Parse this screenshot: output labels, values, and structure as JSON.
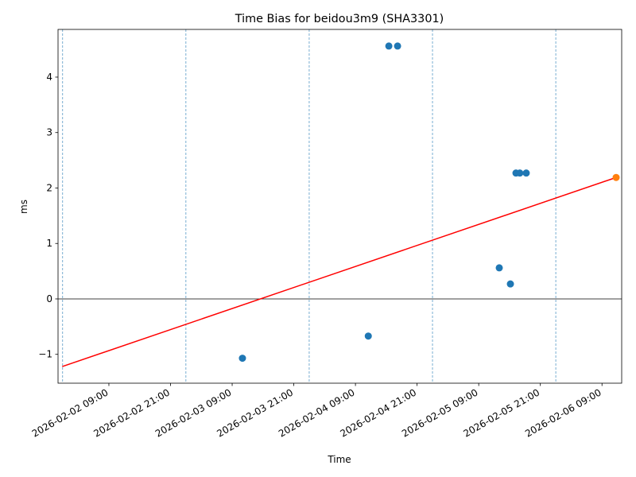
{
  "chart_data": {
    "type": "scatter",
    "title": "Time Bias for beidou3m9 (SHA3301)",
    "xlabel": "Time",
    "ylabel": "ms",
    "xlim": [
      "2026-02-01 23:06",
      "2026-02-06 12:50"
    ],
    "ylim": [
      -1.52,
      4.86
    ],
    "xticks": [
      "2026-02-02 09:00",
      "2026-02-02 21:00",
      "2026-02-03 09:00",
      "2026-02-03 21:00",
      "2026-02-04 09:00",
      "2026-02-04 21:00",
      "2026-02-05 09:00",
      "2026-02-05 21:00",
      "2026-02-06 09:00"
    ],
    "yticks": [
      {
        "value": -1,
        "label": "−1"
      },
      0,
      1,
      2,
      3,
      4
    ],
    "hline": 0,
    "vlines": [
      "2026-02-02 00:00",
      "2026-02-03 00:00",
      "2026-02-04 00:00",
      "2026-02-05 00:00",
      "2026-02-06 00:00"
    ],
    "series": [
      {
        "color": "#1f77b4",
        "x": [
          "2026-02-03 11:00",
          "2026-02-04 11:30",
          "2026-02-04 15:30",
          "2026-02-04 17:12",
          "2026-02-05 13:00",
          "2026-02-05 15:10",
          "2026-02-05 16:15",
          "2026-02-05 17:00",
          "2026-02-05 18:15"
        ],
        "values": [
          -1.07,
          -0.67,
          4.56,
          4.56,
          0.56,
          0.27,
          2.27,
          2.27,
          2.27
        ]
      },
      {
        "color": "#ff7f0e",
        "x": [
          "2026-02-06 11:45"
        ],
        "values": [
          2.19
        ]
      }
    ],
    "trend": {
      "color": "#ff0000",
      "x": [
        "2026-02-01 23:55",
        "2026-02-06 11:45"
      ],
      "values": [
        -1.22,
        2.19
      ]
    }
  }
}
